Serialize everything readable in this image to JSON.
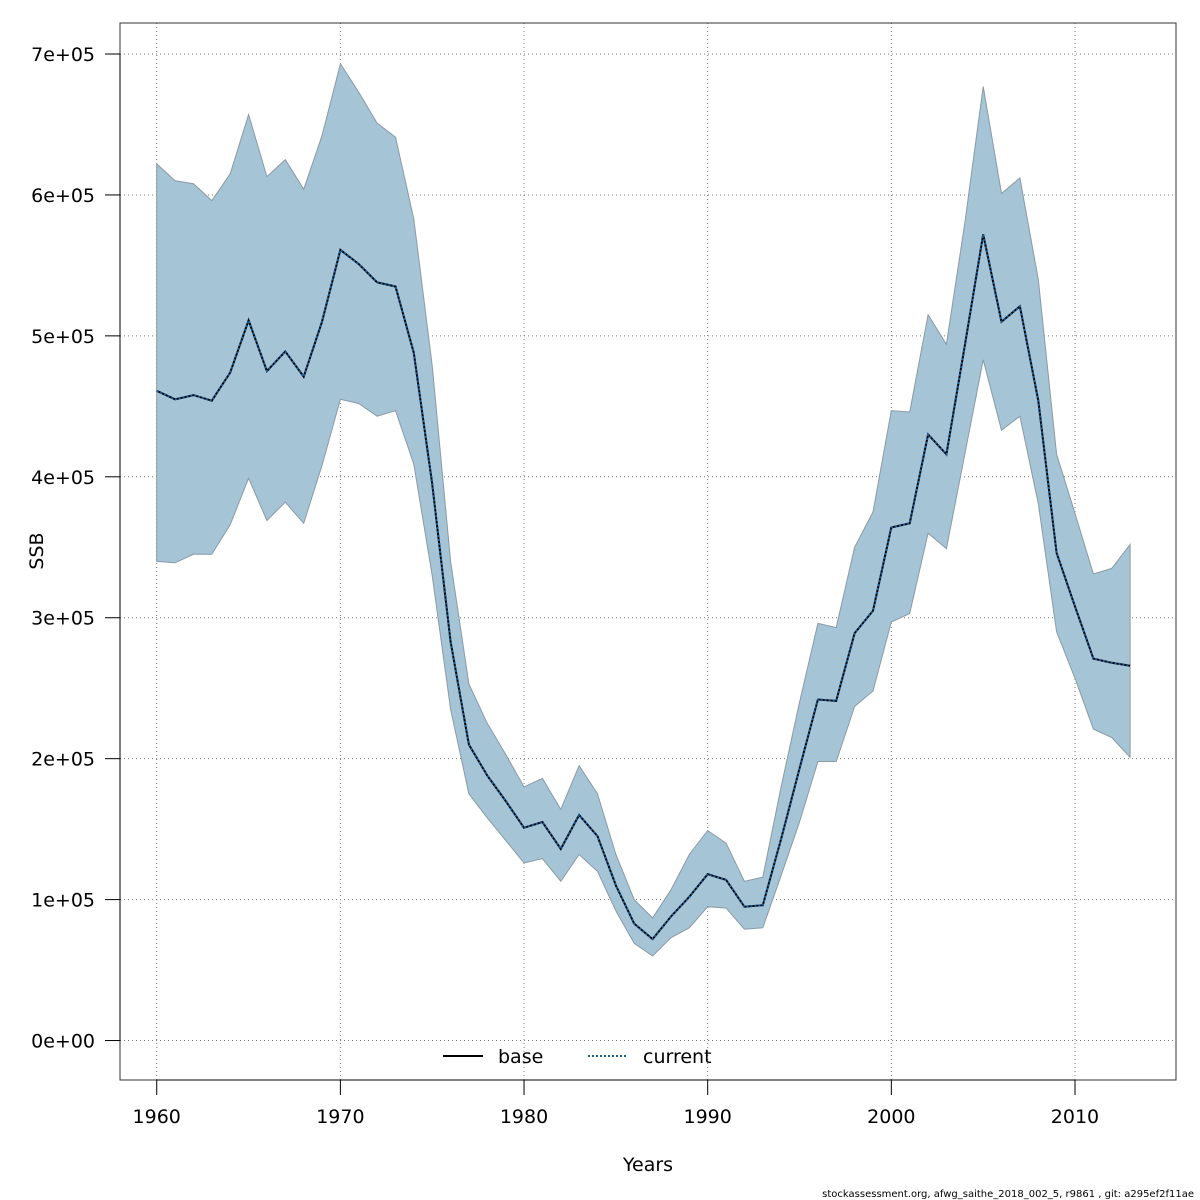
{
  "chart_data": {
    "type": "line",
    "xlabel": "Years",
    "ylabel": "SSB",
    "xlim": [
      1958,
      2015.5
    ],
    "ylim": [
      -28000,
      722000
    ],
    "x_ticks": [
      1960,
      1970,
      1980,
      1990,
      2000,
      2010
    ],
    "y_ticks": [
      0,
      100000,
      200000,
      300000,
      400000,
      500000,
      600000,
      700000
    ],
    "y_tick_labels": [
      "0e+00",
      "1e+05",
      "2e+05",
      "3e+05",
      "4e+05",
      "5e+05",
      "6e+05",
      "7e+05"
    ],
    "grid": true,
    "legend_position": "bottom",
    "band_color": "#a5c4d6",
    "x": [
      1960,
      1961,
      1962,
      1963,
      1964,
      1965,
      1966,
      1967,
      1968,
      1969,
      1970,
      1971,
      1972,
      1973,
      1974,
      1975,
      1976,
      1977,
      1978,
      1979,
      1980,
      1981,
      1982,
      1983,
      1984,
      1985,
      1986,
      1987,
      1988,
      1989,
      1990,
      1991,
      1992,
      1993,
      1994,
      1995,
      1996,
      1997,
      1998,
      1999,
      2000,
      2001,
      2002,
      2003,
      2004,
      2005,
      2006,
      2007,
      2008,
      2009,
      2010,
      2011,
      2012,
      2013
    ],
    "upper": [
      622000,
      610000,
      608000,
      596000,
      615000,
      657000,
      613000,
      625000,
      604000,
      642000,
      693000,
      673000,
      651000,
      641000,
      583000,
      479000,
      340000,
      253000,
      225000,
      203000,
      180000,
      186000,
      164000,
      195000,
      175000,
      132000,
      100000,
      87000,
      107000,
      132000,
      149000,
      140000,
      113000,
      116000,
      180000,
      240000,
      296000,
      293000,
      350000,
      375000,
      447000,
      446000,
      515000,
      494000,
      580000,
      677000,
      601000,
      612000,
      540000,
      416000,
      374000,
      331000,
      335000,
      352000
    ],
    "lower": [
      340000,
      339000,
      345000,
      345000,
      366000,
      399000,
      369000,
      382000,
      367000,
      408000,
      455000,
      452000,
      443000,
      447000,
      409000,
      330000,
      235000,
      175000,
      158000,
      142000,
      126000,
      129000,
      113000,
      132000,
      120000,
      92000,
      69000,
      60000,
      73000,
      80000,
      95000,
      94000,
      79000,
      80000,
      117000,
      155000,
      198000,
      198000,
      237000,
      248000,
      297000,
      303000,
      360000,
      349000,
      416000,
      483000,
      433000,
      443000,
      381000,
      290000,
      257000,
      221000,
      215000,
      201000
    ],
    "series": [
      {
        "name": "base",
        "style": "solid",
        "color": "#000000",
        "values": [
          461000,
          455000,
          458000,
          454000,
          474000,
          511000,
          475000,
          489000,
          471000,
          510000,
          561000,
          551000,
          538000,
          535000,
          488000,
          395000,
          283000,
          210000,
          188000,
          170000,
          151000,
          155000,
          136000,
          160000,
          145000,
          110000,
          83000,
          72000,
          88000,
          102000,
          118000,
          114000,
          95000,
          96000,
          143000,
          193000,
          242000,
          241000,
          289000,
          305000,
          364000,
          367000,
          430000,
          416000,
          493000,
          572000,
          510000,
          521000,
          454000,
          346000,
          308000,
          271000,
          268000,
          266000
        ]
      },
      {
        "name": "current",
        "style": "dotted",
        "color": "#1a5f9a",
        "values": [
          461000,
          455000,
          458000,
          454000,
          474000,
          511000,
          475000,
          489000,
          471000,
          510000,
          561000,
          551000,
          538000,
          535000,
          488000,
          395000,
          283000,
          210000,
          188000,
          170000,
          151000,
          155000,
          136000,
          160000,
          145000,
          110000,
          83000,
          72000,
          88000,
          102000,
          118000,
          114000,
          95000,
          96000,
          143000,
          193000,
          242000,
          241000,
          289000,
          305000,
          364000,
          367000,
          430000,
          416000,
          493000,
          572000,
          510000,
          521000,
          454000,
          346000,
          308000,
          271000,
          268000,
          266000
        ]
      }
    ]
  },
  "footer": {
    "note": "stockassessment.org, afwg_saithe_2018_002_5, r9861 , git: a295ef2f11ae"
  }
}
